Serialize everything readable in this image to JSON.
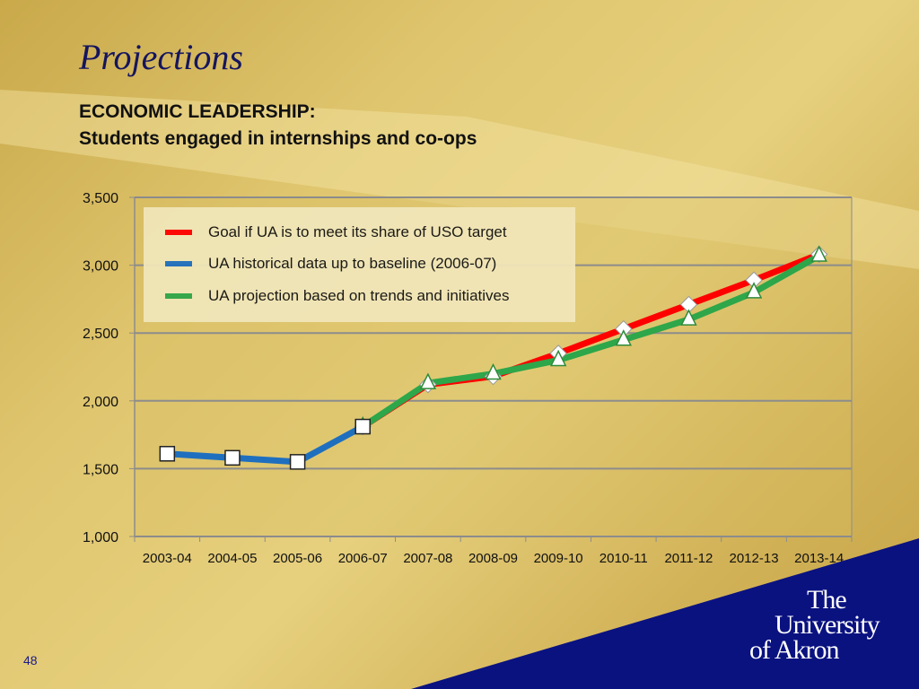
{
  "slide": {
    "title": "Projections",
    "subtitle_line1": "ECONOMIC LEADERSHIP:",
    "subtitle_line2": "Students engaged in internships and co-ops",
    "page_number": "48"
  },
  "logo": {
    "line1": "The",
    "line2": "University",
    "line3": "of Akron"
  },
  "colors": {
    "goal": "#ff0000",
    "historical": "#1f6fbf",
    "projection": "#2ea64a",
    "logo_panel": "#0a1280"
  },
  "chart_data": {
    "type": "line",
    "categories": [
      "2003-04",
      "2004-05",
      "2005-06",
      "2006-07",
      "2007-08",
      "2008-09",
      "2009-10",
      "2010-11",
      "2011-12",
      "2012-13",
      "2013-14"
    ],
    "ylim": [
      1000,
      3500
    ],
    "yticks": [
      1000,
      1500,
      2000,
      2500,
      3000,
      3500
    ],
    "ytick_labels": [
      "1,000",
      "1,500",
      "2,000",
      "2,500",
      "3,000",
      "3,500"
    ],
    "grid": true,
    "legend_position": "top-left",
    "series": [
      {
        "name": "Goal if UA is to meet its share of USO target",
        "color": "#ff0000",
        "marker": "diamond",
        "values": [
          null,
          null,
          null,
          1810,
          2120,
          2180,
          2350,
          2530,
          2710,
          2890,
          3080
        ]
      },
      {
        "name": "UA historical data up to baseline (2006-07)",
        "color": "#1f6fbf",
        "marker": "square",
        "values": [
          1610,
          1580,
          1550,
          1810,
          null,
          null,
          null,
          null,
          null,
          null,
          null
        ]
      },
      {
        "name": "UA projection based on trends and initiatives",
        "color": "#2ea64a",
        "marker": "triangle",
        "values": [
          null,
          null,
          null,
          1810,
          2130,
          2200,
          2300,
          2450,
          2600,
          2800,
          3070
        ]
      }
    ]
  }
}
